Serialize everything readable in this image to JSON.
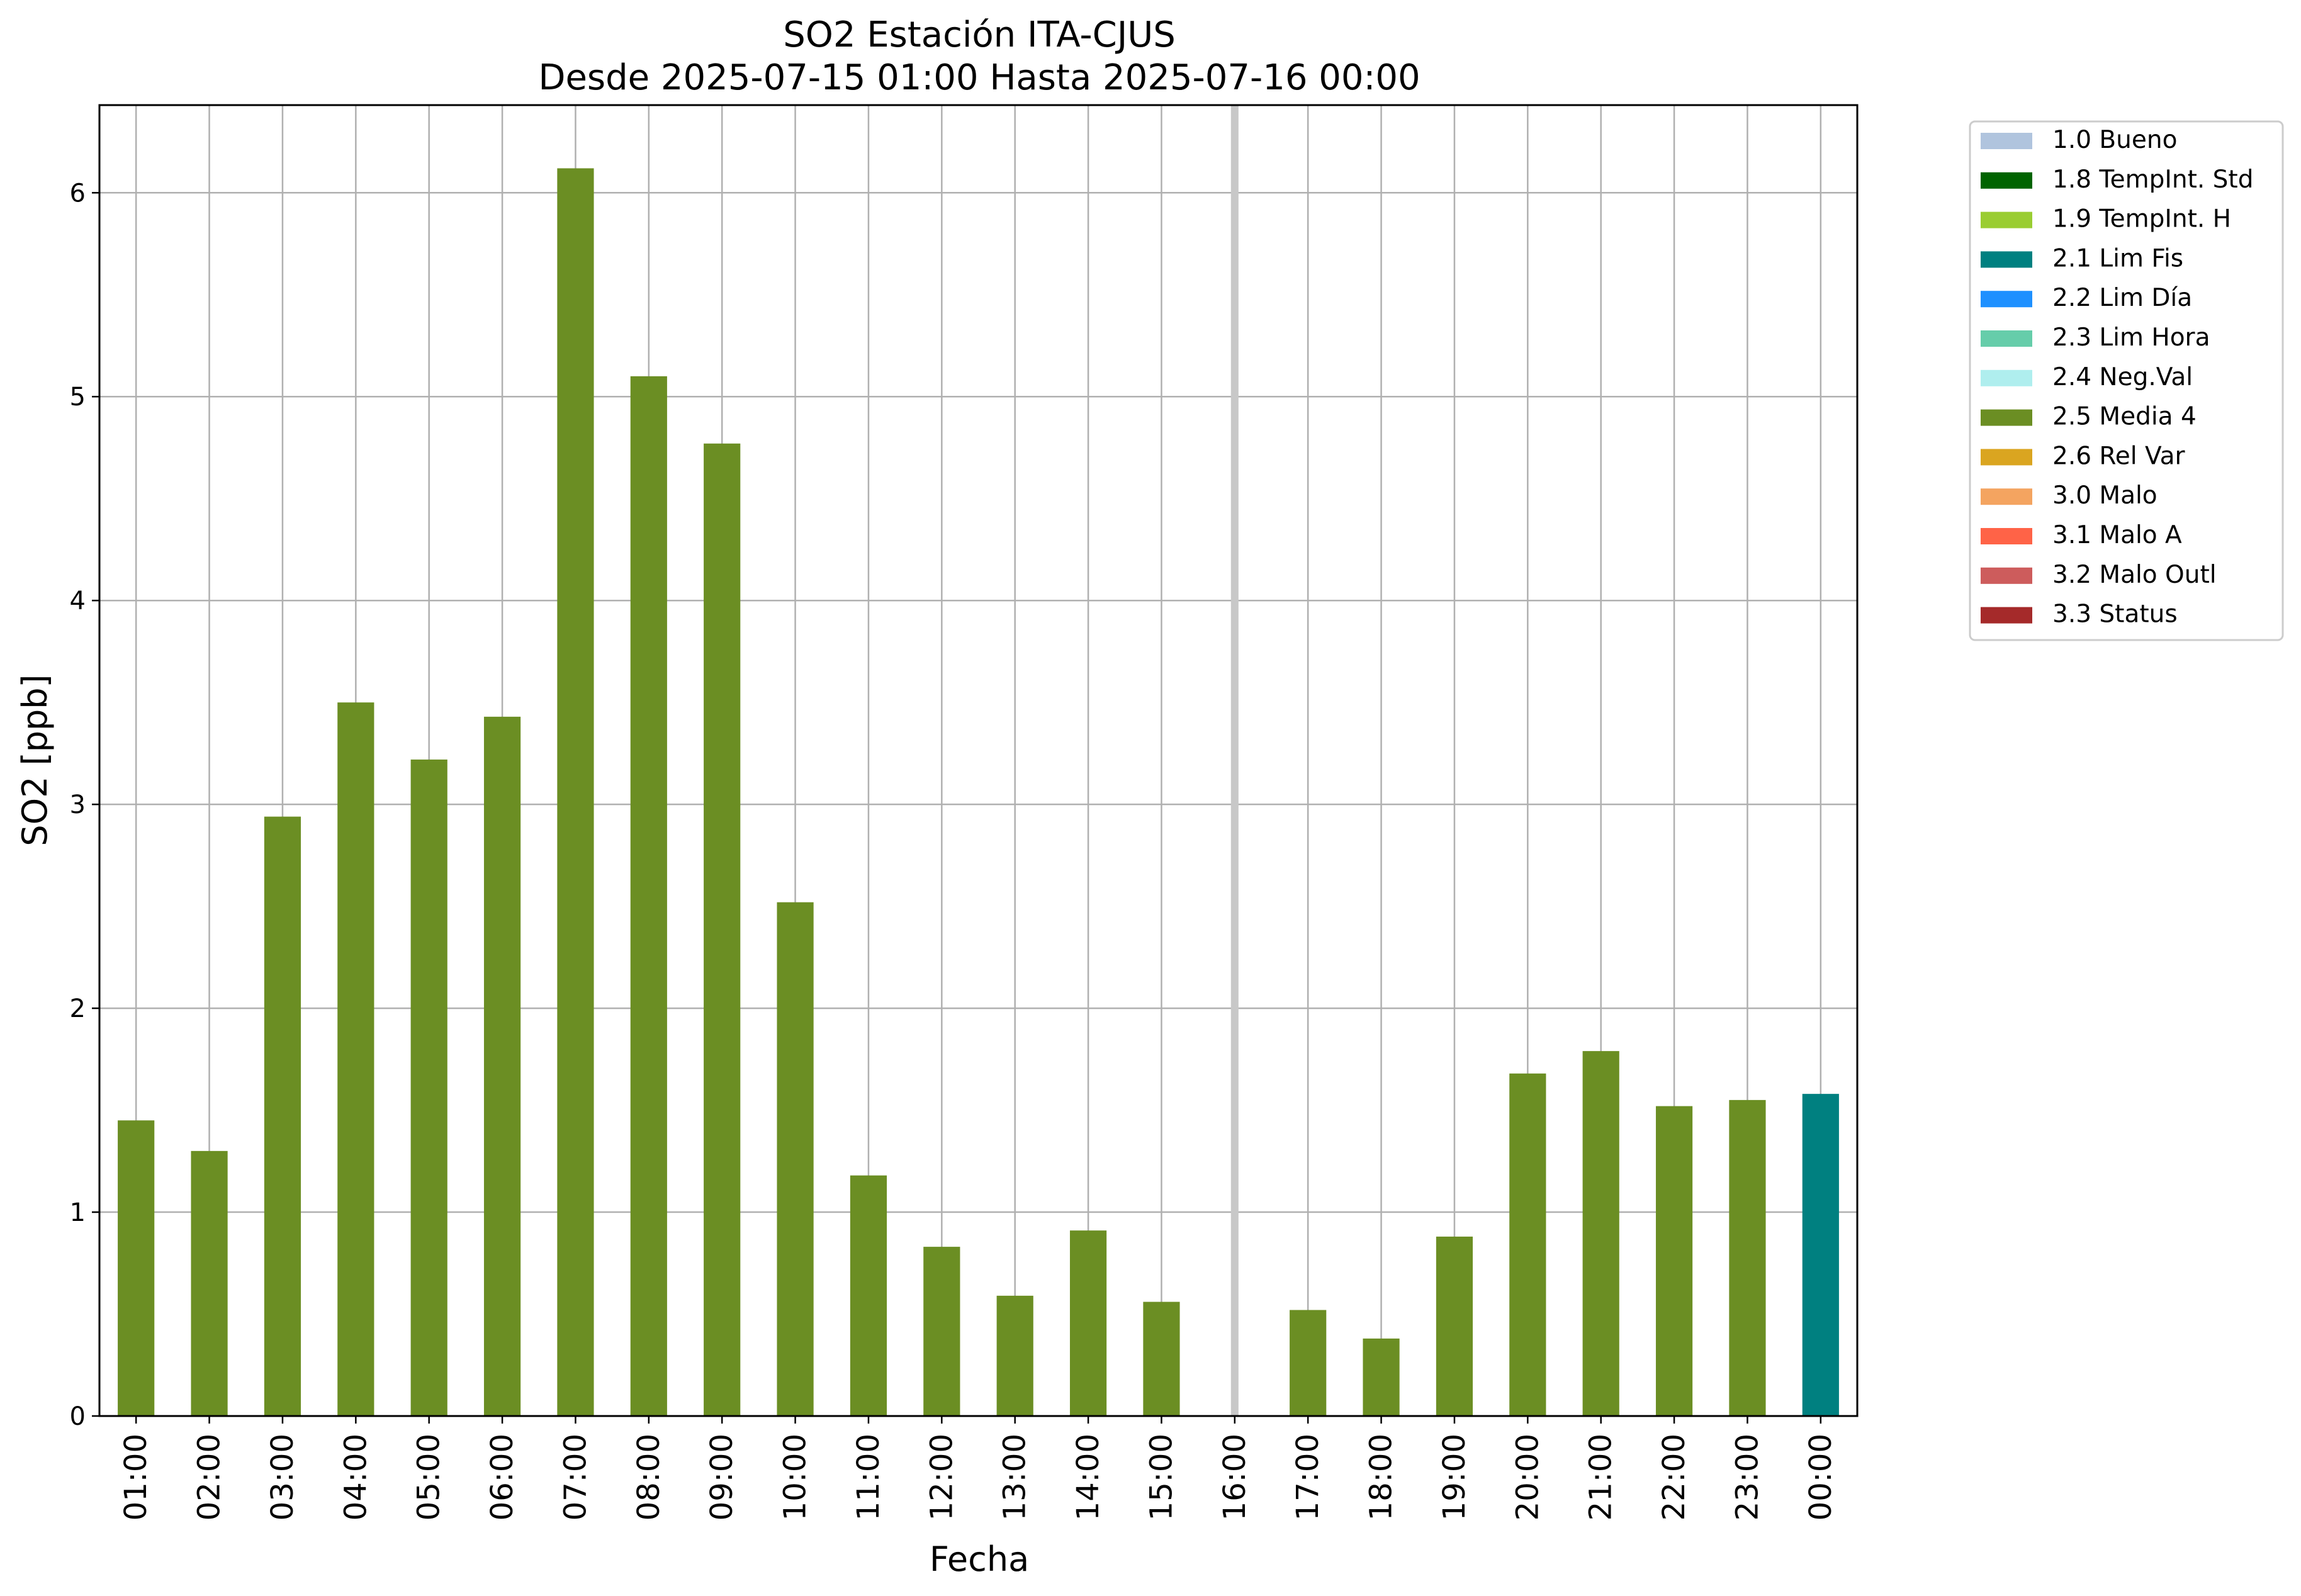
{
  "chart_data": {
    "type": "bar",
    "title": "SO2 Estación ITA-CJUS",
    "subtitle": "Desde 2025-07-15 01:00 Hasta 2025-07-16 00:00",
    "xlabel": "Fecha",
    "ylabel": "SO2 [ppb]",
    "ylim": [
      0,
      6.43
    ],
    "yticks": [
      "0",
      "1",
      "2",
      "3",
      "4",
      "5",
      "6"
    ],
    "grid": true,
    "legend_position": "outside-top-right",
    "categories": [
      "01:00",
      "02:00",
      "03:00",
      "04:00",
      "05:00",
      "06:00",
      "07:00",
      "08:00",
      "09:00",
      "10:00",
      "11:00",
      "12:00",
      "13:00",
      "14:00",
      "15:00",
      "16:00",
      "17:00",
      "18:00",
      "19:00",
      "20:00",
      "21:00",
      "22:00",
      "23:00",
      "00:00"
    ],
    "values": [
      1.45,
      1.3,
      2.94,
      3.5,
      3.22,
      3.43,
      6.12,
      5.1,
      4.77,
      2.52,
      1.18,
      0.83,
      0.59,
      0.91,
      0.56,
      0,
      0.52,
      0.38,
      0.88,
      1.68,
      1.79,
      1.52,
      1.55,
      1.58
    ],
    "flags": [
      "2.5 Media 4",
      "2.5 Media 4",
      "2.5 Media 4",
      "2.5 Media 4",
      "2.5 Media 4",
      "2.5 Media 4",
      "2.5 Media 4",
      "2.5 Media 4",
      "2.5 Media 4",
      "2.5 Media 4",
      "2.5 Media 4",
      "2.5 Media 4",
      "2.5 Media 4",
      "2.5 Media 4",
      "2.5 Media 4",
      null,
      "2.5 Media 4",
      "2.5 Media 4",
      "2.5 Media 4",
      "2.5 Media 4",
      "2.5 Media 4",
      "2.5 Media 4",
      "2.5 Media 4",
      "2.1 Lim Fis"
    ],
    "missing_marker_category": "16:00",
    "missing_marker_color": "#c8c8c8",
    "legend": [
      {
        "label": "1.0 Bueno",
        "color": "#b0c4de"
      },
      {
        "label": "1.8 TempInt. Std",
        "color": "#006400"
      },
      {
        "label": "1.9 TempInt. H",
        "color": "#9acd32"
      },
      {
        "label": "2.1 Lim Fis",
        "color": "#008080"
      },
      {
        "label": "2.2 Lim Día",
        "color": "#1e90ff"
      },
      {
        "label": "2.3 Lim Hora",
        "color": "#66cdaa"
      },
      {
        "label": "2.4 Neg.Val",
        "color": "#afeeee"
      },
      {
        "label": "2.5 Media 4",
        "color": "#6b8e23"
      },
      {
        "label": "2.6 Rel Var",
        "color": "#daa520"
      },
      {
        "label": "3.0 Malo",
        "color": "#f4a460"
      },
      {
        "label": "3.1 Malo A",
        "color": "#ff6347"
      },
      {
        "label": "3.2 Malo Outl",
        "color": "#cd5c5c"
      },
      {
        "label": "3.3 Status",
        "color": "#a52a2a"
      }
    ]
  }
}
